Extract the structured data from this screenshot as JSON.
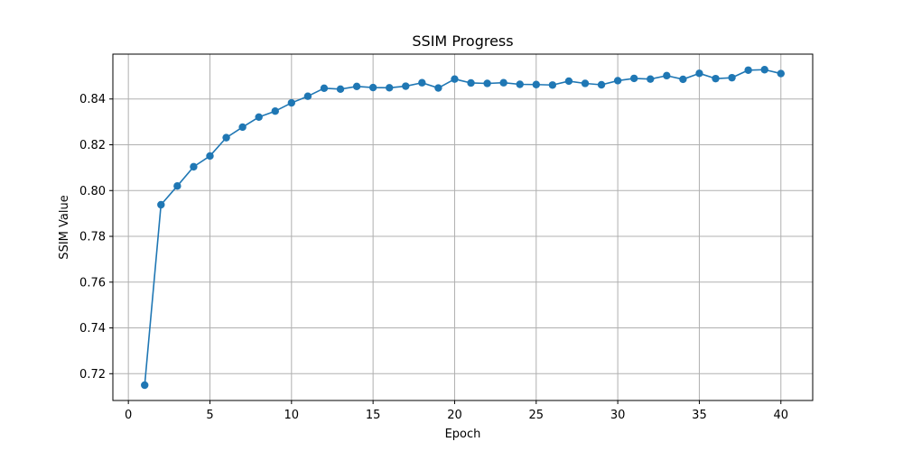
{
  "chart_data": {
    "type": "line",
    "title": "SSIM Progress",
    "xlabel": "Epoch",
    "ylabel": "SSIM Value",
    "xlim": [
      -0.95,
      41.95
    ],
    "ylim": [
      0.7083,
      0.8596
    ],
    "xticks": [
      0,
      5,
      10,
      15,
      20,
      25,
      30,
      35,
      40
    ],
    "yticks": [
      0.72,
      0.74,
      0.76,
      0.78,
      0.8,
      0.82,
      0.84
    ],
    "ytick_labels": [
      "0.72",
      "0.74",
      "0.76",
      "0.78",
      "0.80",
      "0.82",
      "0.84"
    ],
    "grid": true,
    "marker": "circle",
    "series": [
      {
        "color": "#1f77b4",
        "x": [
          1,
          2,
          3,
          4,
          5,
          6,
          7,
          8,
          9,
          10,
          11,
          12,
          13,
          14,
          15,
          16,
          17,
          18,
          19,
          20,
          21,
          22,
          23,
          24,
          25,
          26,
          27,
          28,
          29,
          30,
          31,
          32,
          33,
          34,
          35,
          36,
          37,
          38,
          39,
          40
        ],
        "y": [
          0.715,
          0.7938,
          0.802,
          0.8104,
          0.8151,
          0.8231,
          0.8277,
          0.8321,
          0.8347,
          0.8383,
          0.8412,
          0.8447,
          0.8443,
          0.8455,
          0.845,
          0.8449,
          0.8456,
          0.8471,
          0.8448,
          0.8487,
          0.847,
          0.8468,
          0.8471,
          0.8464,
          0.8463,
          0.8461,
          0.8478,
          0.8468,
          0.8462,
          0.848,
          0.849,
          0.8487,
          0.8502,
          0.8486,
          0.8512,
          0.8489,
          0.8493,
          0.8526,
          0.8528,
          0.8511
        ]
      }
    ]
  }
}
